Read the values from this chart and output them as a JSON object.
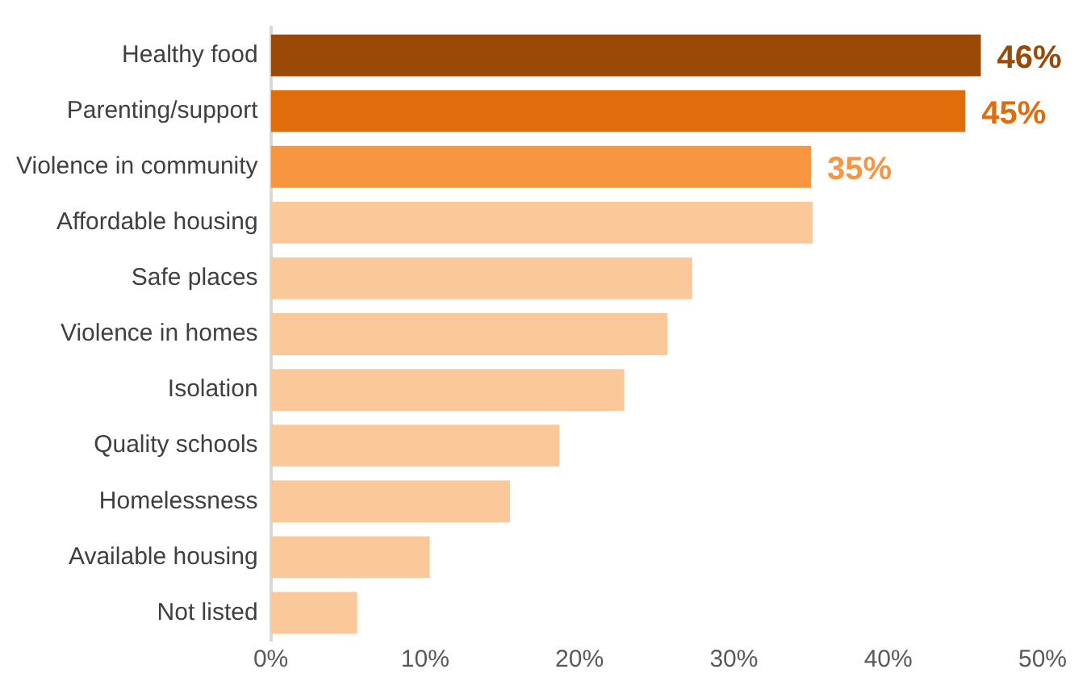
{
  "chart_data": {
    "type": "bar",
    "orientation": "horizontal",
    "categories": [
      "Healthy food",
      "Parenting/support",
      "Violence in community",
      "Affordable housing",
      "Safe places",
      "Violence in homes",
      "Isolation",
      "Quality schools",
      "Homelessness",
      "Available housing",
      "Not listed"
    ],
    "values": [
      46,
      45,
      35,
      35.1,
      27.3,
      25.7,
      22.9,
      18.7,
      15.5,
      10.3,
      5.6
    ],
    "colors": [
      "#9a4a06",
      "#e06c0c",
      "#f79540",
      "#fbc89a",
      "#fbc89a",
      "#fbc89a",
      "#fbc89a",
      "#fbc89a",
      "#fbc89a",
      "#fbc89a",
      "#fbc89a"
    ],
    "value_labels": [
      "46%",
      "45%",
      "35%",
      null,
      null,
      null,
      null,
      null,
      null,
      null,
      null
    ],
    "xlim": [
      0,
      50
    ],
    "xticks": [
      {
        "value": 0,
        "label": "0%"
      },
      {
        "value": 10,
        "label": "10%"
      },
      {
        "value": 20,
        "label": "20%"
      },
      {
        "value": 30,
        "label": "30%"
      },
      {
        "value": 40,
        "label": "40%"
      },
      {
        "value": 50,
        "label": "50%"
      }
    ],
    "grid": false,
    "legend": false
  }
}
